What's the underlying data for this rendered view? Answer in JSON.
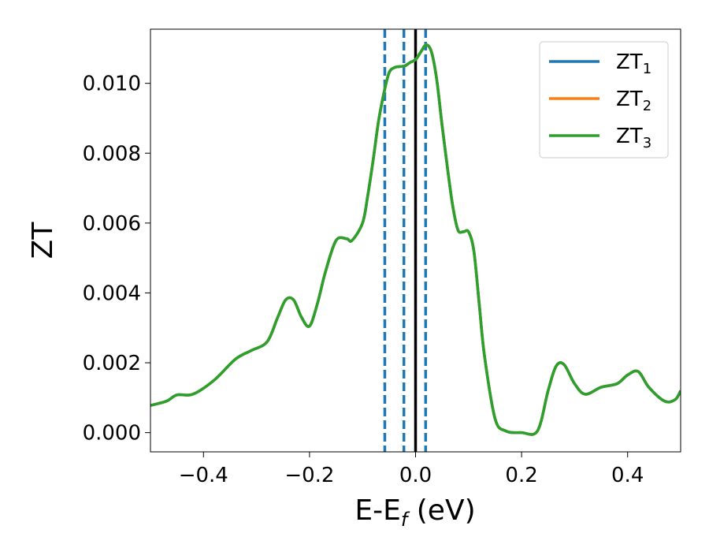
{
  "chart_data": {
    "type": "line",
    "xlabel": "E-E_f (eV)",
    "xlabel_parts": {
      "main": "E-E",
      "sub": "f",
      "tail": " (eV)"
    },
    "ylabel": "ZT",
    "xlim": [
      -0.5,
      0.5
    ],
    "ylim": [
      -0.00055,
      0.01155
    ],
    "xticks": [
      -0.4,
      -0.2,
      0.0,
      0.2,
      0.4
    ],
    "xtick_labels": [
      "−0.4",
      "−0.2",
      "0.0",
      "0.2",
      "0.4"
    ],
    "yticks": [
      0.0,
      0.002,
      0.004,
      0.006,
      0.008,
      0.01
    ],
    "ytick_labels": [
      "0.000",
      "0.002",
      "0.004",
      "0.006",
      "0.008",
      "0.010"
    ],
    "grid": false,
    "legend_position": "top-right",
    "series": [
      {
        "name": "ZT_1",
        "label_main": "ZT",
        "label_sub": "1",
        "color": "#1f77b4",
        "x": [
          -0.5,
          -0.47,
          -0.45,
          -0.42,
          -0.38,
          -0.34,
          -0.31,
          -0.28,
          -0.26,
          -0.245,
          -0.23,
          -0.215,
          -0.2,
          -0.185,
          -0.17,
          -0.15,
          -0.13,
          -0.12,
          -0.1,
          -0.09,
          -0.08,
          -0.07,
          -0.06,
          -0.05,
          -0.04,
          -0.03,
          -0.02,
          -0.01,
          0.0,
          0.01,
          0.02,
          0.03,
          0.04,
          0.05,
          0.06,
          0.07,
          0.08,
          0.09,
          0.1,
          0.11,
          0.12,
          0.13,
          0.15,
          0.17,
          0.2,
          0.23,
          0.25,
          0.265,
          0.28,
          0.3,
          0.32,
          0.35,
          0.38,
          0.4,
          0.42,
          0.44,
          0.47,
          0.49,
          0.5
        ],
        "y": [
          0.00078,
          0.0009,
          0.00108,
          0.0011,
          0.0015,
          0.0021,
          0.00235,
          0.0026,
          0.0033,
          0.0038,
          0.0038,
          0.0033,
          0.00305,
          0.0037,
          0.0046,
          0.0055,
          0.00555,
          0.0055,
          0.006,
          0.0068,
          0.0078,
          0.0089,
          0.0097,
          0.0103,
          0.01045,
          0.01048,
          0.0105,
          0.0106,
          0.01068,
          0.0109,
          0.0111,
          0.0109,
          0.0101,
          0.0088,
          0.0076,
          0.0065,
          0.0058,
          0.00575,
          0.00575,
          0.0052,
          0.0037,
          0.0022,
          0.0004,
          5e-05,
          0.0,
          5e-05,
          0.0012,
          0.0019,
          0.00195,
          0.0014,
          0.0011,
          0.0013,
          0.0014,
          0.00165,
          0.00175,
          0.0013,
          0.0009,
          0.00095,
          0.0012
        ]
      },
      {
        "name": "ZT_2",
        "label_main": "ZT",
        "label_sub": "2",
        "color": "#ff7f0e",
        "x": [
          -0.5,
          -0.47,
          -0.45,
          -0.42,
          -0.38,
          -0.34,
          -0.31,
          -0.28,
          -0.26,
          -0.245,
          -0.23,
          -0.215,
          -0.2,
          -0.185,
          -0.17,
          -0.15,
          -0.13,
          -0.12,
          -0.1,
          -0.09,
          -0.08,
          -0.07,
          -0.06,
          -0.05,
          -0.04,
          -0.03,
          -0.02,
          -0.01,
          0.0,
          0.01,
          0.02,
          0.03,
          0.04,
          0.05,
          0.06,
          0.07,
          0.08,
          0.09,
          0.1,
          0.11,
          0.12,
          0.13,
          0.15,
          0.17,
          0.2,
          0.23,
          0.25,
          0.265,
          0.28,
          0.3,
          0.32,
          0.35,
          0.38,
          0.4,
          0.42,
          0.44,
          0.47,
          0.49,
          0.5
        ],
        "y": [
          0.00078,
          0.0009,
          0.00108,
          0.0011,
          0.0015,
          0.0021,
          0.00235,
          0.0026,
          0.0033,
          0.0038,
          0.0038,
          0.0033,
          0.00305,
          0.0037,
          0.0046,
          0.0055,
          0.00555,
          0.0055,
          0.006,
          0.0068,
          0.0078,
          0.0089,
          0.0097,
          0.0103,
          0.01045,
          0.01048,
          0.0105,
          0.0106,
          0.01068,
          0.0109,
          0.0111,
          0.0109,
          0.0101,
          0.0088,
          0.0076,
          0.0065,
          0.0058,
          0.00575,
          0.00575,
          0.0052,
          0.0037,
          0.0022,
          0.0004,
          5e-05,
          0.0,
          5e-05,
          0.0012,
          0.0019,
          0.00195,
          0.0014,
          0.0011,
          0.0013,
          0.0014,
          0.00165,
          0.00175,
          0.0013,
          0.0009,
          0.00095,
          0.0012
        ]
      },
      {
        "name": "ZT_3",
        "label_main": "ZT",
        "label_sub": "3",
        "color": "#2ca02c",
        "x": [
          -0.5,
          -0.47,
          -0.45,
          -0.42,
          -0.38,
          -0.34,
          -0.31,
          -0.28,
          -0.26,
          -0.245,
          -0.23,
          -0.215,
          -0.2,
          -0.185,
          -0.17,
          -0.15,
          -0.13,
          -0.12,
          -0.1,
          -0.09,
          -0.08,
          -0.07,
          -0.06,
          -0.05,
          -0.04,
          -0.03,
          -0.02,
          -0.01,
          0.0,
          0.01,
          0.02,
          0.03,
          0.04,
          0.05,
          0.06,
          0.07,
          0.08,
          0.09,
          0.1,
          0.11,
          0.12,
          0.13,
          0.15,
          0.17,
          0.2,
          0.23,
          0.25,
          0.265,
          0.28,
          0.3,
          0.32,
          0.35,
          0.38,
          0.4,
          0.42,
          0.44,
          0.47,
          0.49,
          0.5
        ],
        "y": [
          0.00078,
          0.0009,
          0.00108,
          0.0011,
          0.0015,
          0.0021,
          0.00235,
          0.0026,
          0.0033,
          0.0038,
          0.0038,
          0.0033,
          0.00305,
          0.0037,
          0.0046,
          0.0055,
          0.00555,
          0.0055,
          0.006,
          0.0068,
          0.0078,
          0.0089,
          0.0097,
          0.0103,
          0.01045,
          0.01048,
          0.0105,
          0.0106,
          0.01068,
          0.0109,
          0.0111,
          0.0109,
          0.0101,
          0.0088,
          0.0076,
          0.0065,
          0.0058,
          0.00575,
          0.00575,
          0.0052,
          0.0037,
          0.0022,
          0.0004,
          5e-05,
          0.0,
          5e-05,
          0.0012,
          0.0019,
          0.00195,
          0.0014,
          0.0011,
          0.0013,
          0.0014,
          0.00165,
          0.00175,
          0.0013,
          0.0009,
          0.00095,
          0.0012
        ]
      }
    ],
    "vlines": [
      {
        "x": -0.058,
        "style": "dashed",
        "color": "#1f77b4"
      },
      {
        "x": -0.022,
        "style": "dashed",
        "color": "#1f77b4"
      },
      {
        "x": 0.019,
        "style": "dashed",
        "color": "#1f77b4"
      },
      {
        "x": 0.0,
        "style": "solid",
        "color": "#000000"
      }
    ]
  }
}
